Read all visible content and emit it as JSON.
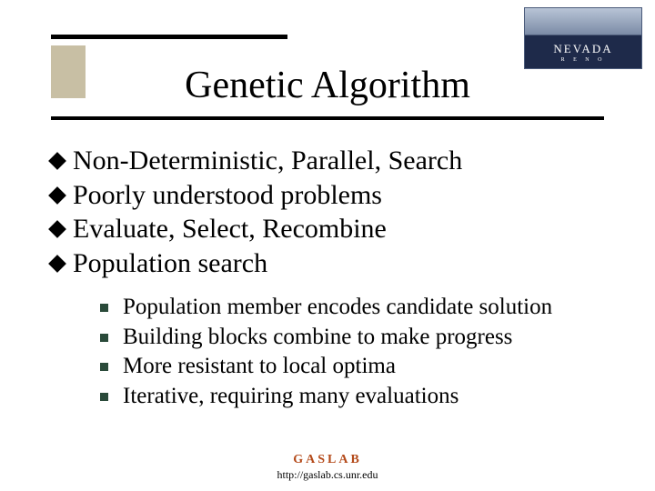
{
  "logo": {
    "line1": "NEVADA",
    "line2": "R E N O"
  },
  "title": "Genetic Algorithm",
  "bullets": [
    "Non-Deterministic, Parallel, Search",
    "Poorly understood problems",
    "Evaluate, Select, Recombine",
    "Population search"
  ],
  "subbullets": [
    "Population member encodes candidate solution",
    "Building blocks combine to make progress",
    "More resistant to local optima",
    "Iterative, requiring many evaluations"
  ],
  "footer": {
    "label": "GASLAB",
    "url": "http://gaslab.cs.unr.edu"
  },
  "style": {
    "title_fontsize": 42,
    "l1_fontsize": 30,
    "l2_fontsize": 25,
    "l1_bullet_color": "#000000",
    "l2_bullet_color": "#2a4a3a",
    "accent_block_color": "#9a8b5a",
    "rule_color": "#000000",
    "footer_label_color": "#b44a1a",
    "background": "#ffffff"
  }
}
